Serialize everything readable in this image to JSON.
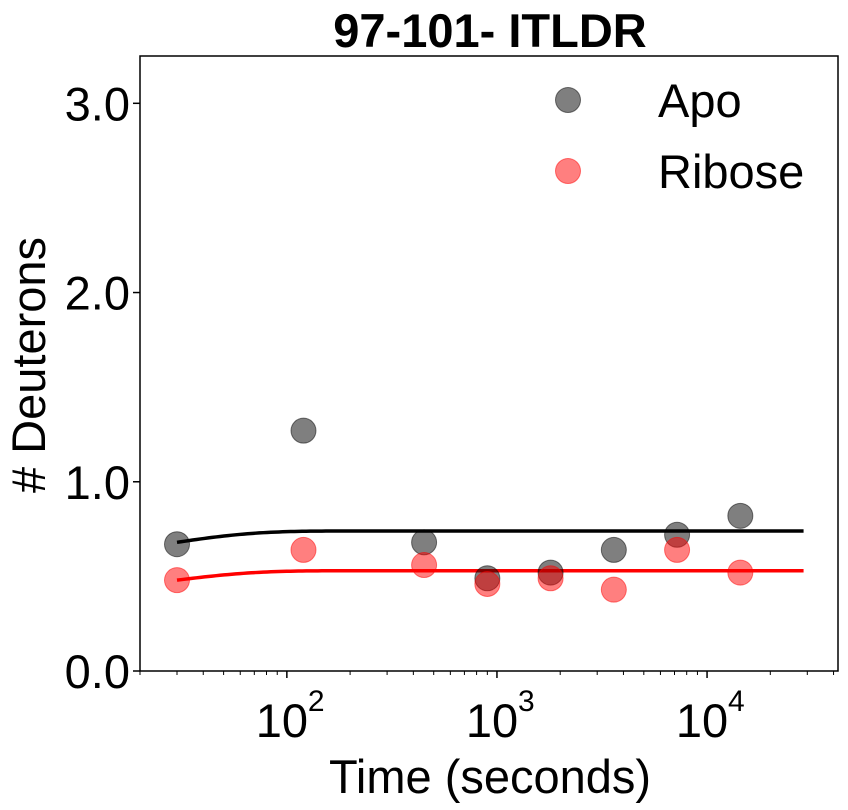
{
  "chart_data": {
    "type": "scatter",
    "title": "97-101- ITLDR",
    "xlabel": "Time (seconds)",
    "ylabel": "# Deuterons",
    "xscale": "log",
    "xlim": [
      20,
      42000
    ],
    "ylim": [
      0,
      3.25
    ],
    "x_ticks": [
      {
        "value": 100,
        "base": "10",
        "exp": "2"
      },
      {
        "value": 1000,
        "base": "10",
        "exp": "3"
      },
      {
        "value": 10000,
        "base": "10",
        "exp": "4"
      }
    ],
    "y_ticks": [
      {
        "value": 0,
        "label": "0.0"
      },
      {
        "value": 1,
        "label": "1.0"
      },
      {
        "value": 2,
        "label": "2.0"
      },
      {
        "value": 3,
        "label": "3.0"
      }
    ],
    "grid": false,
    "legend_position": "top-right",
    "series": [
      {
        "name": "Apo",
        "color": "#000000",
        "x": [
          30,
          120,
          450,
          900,
          1800,
          3600,
          7200,
          14400
        ],
        "y": [
          0.67,
          1.27,
          0.68,
          0.49,
          0.52,
          0.64,
          0.72,
          0.82
        ],
        "fit": {
          "plateau": 0.74,
          "start": 0.68,
          "x_start": 30,
          "x_end": 28800,
          "rate": 0.04
        }
      },
      {
        "name": "Ribose",
        "color": "#ff0000",
        "x": [
          30,
          120,
          450,
          900,
          1800,
          3600,
          7200,
          14400
        ],
        "y": [
          0.48,
          0.64,
          0.56,
          0.46,
          0.49,
          0.43,
          0.64,
          0.52
        ],
        "fit": {
          "plateau": 0.53,
          "start": 0.48,
          "x_start": 30,
          "x_end": 28800,
          "rate": 0.04
        }
      }
    ]
  }
}
